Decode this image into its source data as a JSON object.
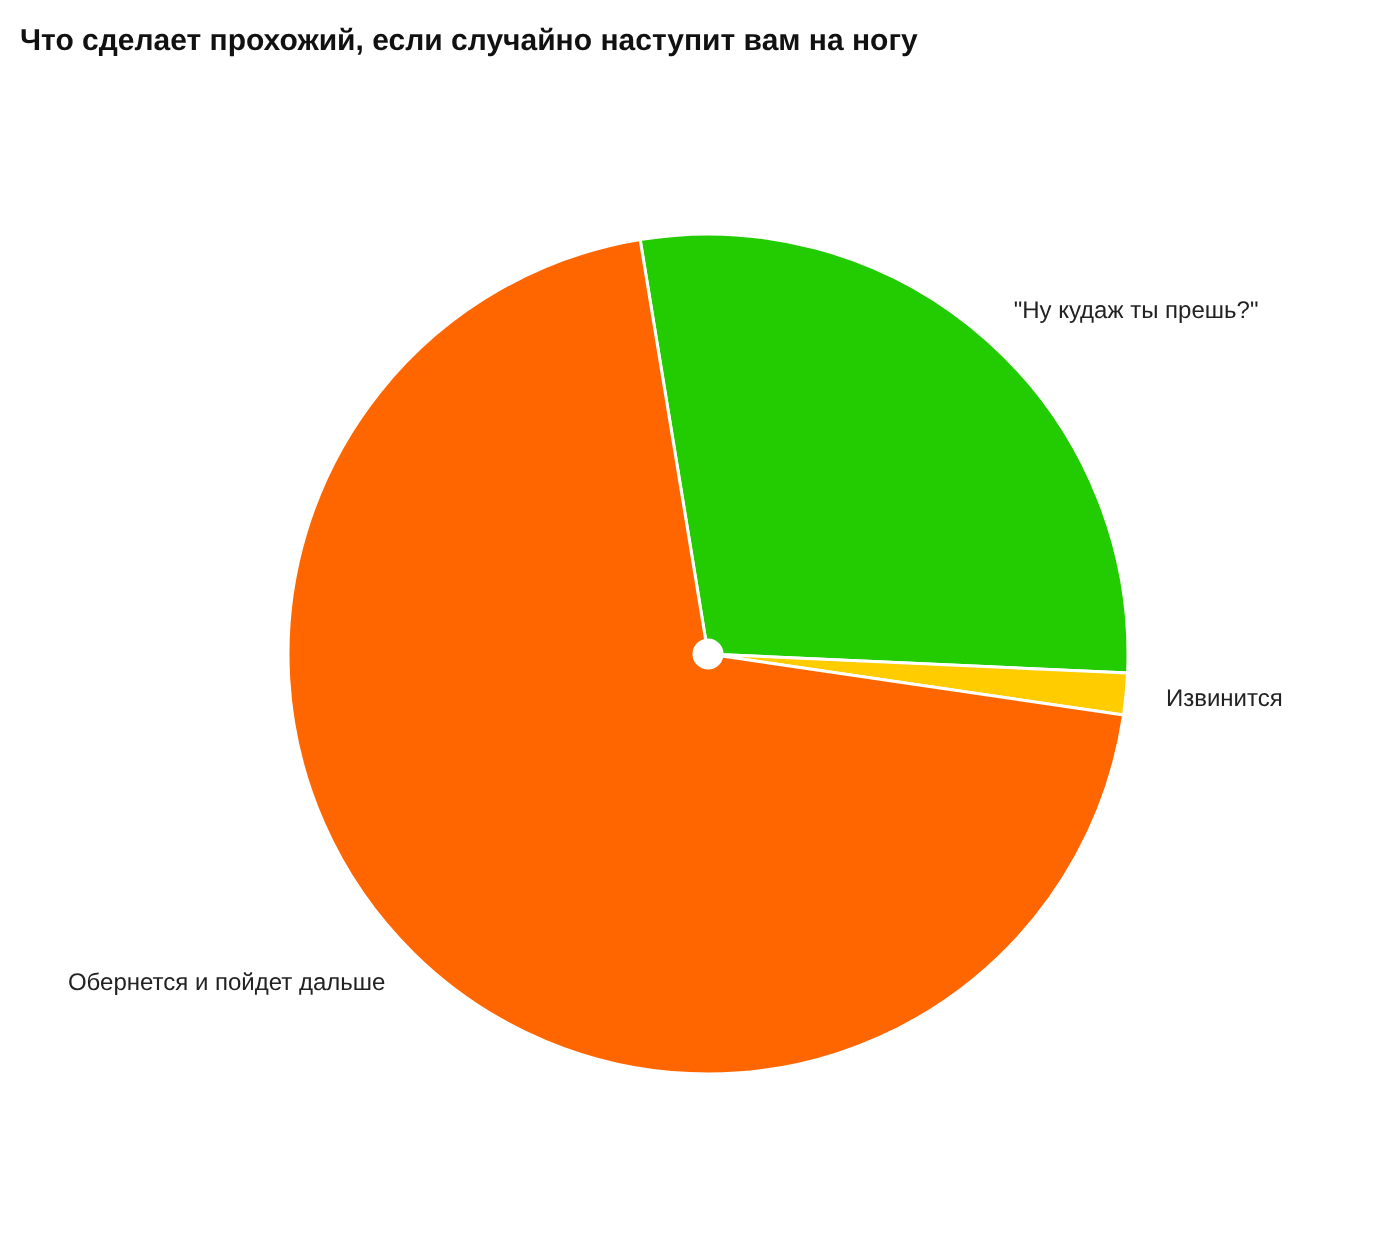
{
  "chart_data": {
    "type": "pie",
    "title": "Что сделает прохожий, если случайно наступит вам на ногу",
    "categories": [
      "\"Ну кудаж ты прешь?\"",
      "Извинится",
      "Обернется и пойдет дальше"
    ],
    "values": [
      28.3,
      1.6,
      70.1
    ],
    "colors": [
      "#22cc00",
      "#ffcc00",
      "#ff6600"
    ]
  }
}
